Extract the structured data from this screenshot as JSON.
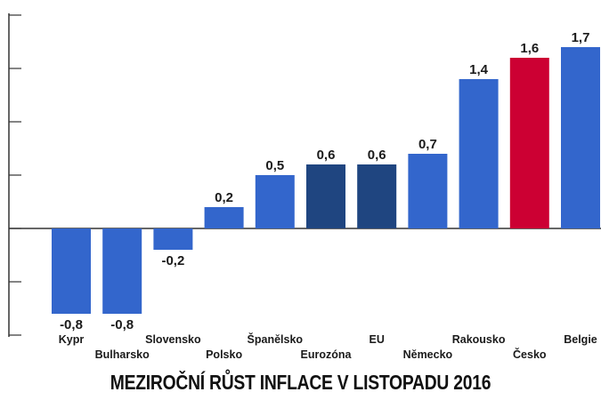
{
  "chart_data": {
    "type": "bar",
    "title": "MEZIROČNÍ RŮST INFLACE V LISTOPADU 2016",
    "categories": [
      "Kypr",
      "Bulharsko",
      "Slovensko",
      "Polsko",
      "Španělsko",
      "Eurozóna",
      "EU",
      "Německo",
      "Rakousko",
      "Česko",
      "Belgie"
    ],
    "values": [
      -0.8,
      -0.8,
      -0.2,
      0.2,
      0.5,
      0.6,
      0.6,
      0.7,
      1.4,
      1.6,
      1.7
    ],
    "value_labels": [
      "-0,8",
      "-0,8",
      "-0,2",
      "0,2",
      "0,5",
      "0,6",
      "0,6",
      "0,7",
      "1,4",
      "1,6",
      "1,7"
    ],
    "ylim": [
      -1.0,
      2.0
    ],
    "grid": false,
    "legend": "none",
    "colors": {
      "default": "#3366cc",
      "aggregate": "#1f4580",
      "highlight": "#cc0033",
      "axis": "#333333",
      "text": "#1a1a1a"
    },
    "bar_color_keys": [
      "default",
      "default",
      "default",
      "default",
      "default",
      "aggregate",
      "aggregate",
      "default",
      "default",
      "highlight",
      "default"
    ]
  }
}
